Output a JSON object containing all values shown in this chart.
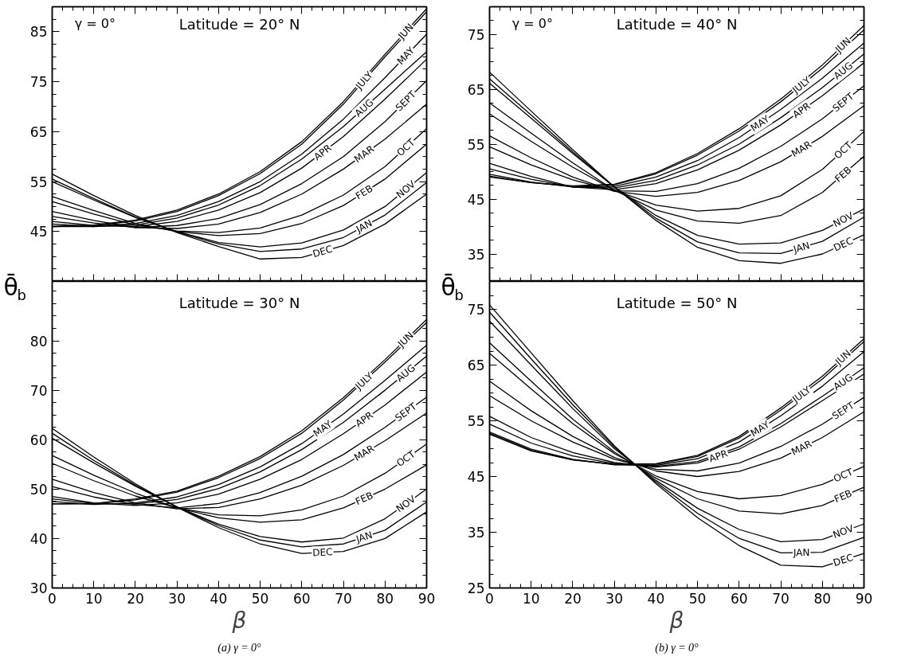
{
  "chart_data": [
    {
      "type": "line",
      "title": "Latitude = 20° N",
      "legend": "right",
      "ylabel": "θ̄$_{b}$",
      "annotations": [
        "γ = 0°"
      ],
      "x": [
        0,
        10,
        20,
        30,
        40,
        50,
        60,
        70,
        80,
        90
      ],
      "xlim": [
        0,
        90
      ],
      "xticks": [
        0,
        10,
        20,
        30,
        40,
        50,
        60,
        70,
        80,
        90
      ],
      "ylim": [
        35,
        90
      ],
      "yticks": [
        45,
        55,
        65,
        75,
        85
      ],
      "tick_labels": "y",
      "series": [
        {
          "name": "JAN",
          "color": "#000000",
          "values": [
            55.5,
            51.6,
            47.9,
            44.9,
            42.5,
            41,
            41.5,
            43.8,
            48.3,
            54.8
          ]
        },
        {
          "name": "FEB",
          "color": "#000000",
          "values": [
            52,
            49.2,
            46.6,
            45,
            44.2,
            44.6,
            46.6,
            50.2,
            55.5,
            62.5
          ]
        },
        {
          "name": "MAR",
          "color": "#000000",
          "values": [
            49,
            47.2,
            45.8,
            45.6,
            46.5,
            48.8,
            52.5,
            57.5,
            63.5,
            70.5
          ]
        },
        {
          "name": "APR",
          "color": "#000000",
          "values": [
            47,
            46.2,
            46,
            47,
            49.3,
            52.8,
            57.7,
            64,
            71.5,
            79.5
          ]
        },
        {
          "name": "MAY",
          "color": "#000000",
          "values": [
            46,
            46,
            46.6,
            48.2,
            51,
            55,
            60.5,
            67.5,
            75.8,
            84.5
          ]
        },
        {
          "name": "JUN",
          "color": "#000000",
          "values": [
            46,
            46.3,
            47.3,
            49.3,
            52.5,
            57,
            63,
            71,
            80.5,
            89.6
          ]
        },
        {
          "name": "JULY",
          "color": "#000000",
          "values": [
            46,
            46.2,
            47.1,
            49,
            52.2,
            56.6,
            62.5,
            70.5,
            80,
            89
          ]
        },
        {
          "name": "AUG",
          "color": "#000000",
          "values": [
            46.5,
            46,
            46.3,
            47.7,
            50.3,
            54.2,
            59.5,
            66,
            73.5,
            81
          ]
        },
        {
          "name": "SEPT",
          "color": "#000000",
          "values": [
            48,
            46.7,
            45.8,
            46.2,
            47.6,
            50.4,
            54.6,
            60,
            67,
            75.2
          ]
        },
        {
          "name": "OCT",
          "color": "#000000",
          "values": [
            51,
            48.5,
            46.3,
            45.1,
            44.8,
            45.7,
            48.3,
            52.3,
            58,
            65.6
          ]
        },
        {
          "name": "NOV",
          "color": "#000000",
          "values": [
            55,
            51.3,
            47.8,
            45,
            42.8,
            41.9,
            42.7,
            45.3,
            50,
            56.8
          ]
        },
        {
          "name": "DEC",
          "color": "#000000",
          "values": [
            56.5,
            52.2,
            48.2,
            44.8,
            42,
            39.5,
            39.8,
            42.2,
            46.5,
            52.5
          ]
        }
      ]
    },
    {
      "type": "line",
      "title": "Latitude = 30° N",
      "legend": "right",
      "xlabel": "β",
      "annotations": [
        "(a) γ = 0°"
      ],
      "x": [
        0,
        10,
        20,
        30,
        40,
        50,
        60,
        70,
        80,
        90
      ],
      "xlim": [
        0,
        90
      ],
      "xticks": [
        0,
        10,
        20,
        30,
        40,
        50,
        60,
        70,
        80,
        90
      ],
      "ylim": [
        30,
        92
      ],
      "yticks": [
        30,
        40,
        50,
        60,
        70,
        80
      ],
      "series": [
        {
          "name": "JAN",
          "color": "#000000",
          "values": [
            61.3,
            55.8,
            50.8,
            46.4,
            42.6,
            39.7,
            38.3,
            38.9,
            41.7,
            47.4
          ]
        },
        {
          "name": "FEB",
          "color": "#000000",
          "values": [
            56.8,
            52.8,
            49.2,
            46.2,
            44.2,
            43.3,
            43.8,
            46.2,
            50,
            54.9
          ]
        },
        {
          "name": "MAR",
          "color": "#000000",
          "values": [
            52,
            49.3,
            47.2,
            46,
            46.3,
            48,
            50.8,
            54.8,
            59.8,
            65.4
          ]
        },
        {
          "name": "APR",
          "color": "#000000",
          "values": [
            48.5,
            47.2,
            46.7,
            47.2,
            49,
            52,
            56,
            61.2,
            67,
            73.7
          ]
        },
        {
          "name": "MAY",
          "color": "#000000",
          "values": [
            47.5,
            46.9,
            47.2,
            48.4,
            50.9,
            54.5,
            59.2,
            65.2,
            72,
            79.1
          ]
        },
        {
          "name": "JUN",
          "color": "#000000",
          "values": [
            47,
            47.1,
            48,
            49.6,
            52.6,
            56.6,
            61.8,
            68.5,
            76.2,
            84.3
          ]
        },
        {
          "name": "JULY",
          "color": "#000000",
          "values": [
            47,
            47,
            47.8,
            49.4,
            52.3,
            56.2,
            61.3,
            68,
            75.7,
            83.7
          ]
        },
        {
          "name": "AUG",
          "color": "#000000",
          "values": [
            48,
            47.1,
            47,
            47.9,
            50.1,
            53.5,
            58,
            63.5,
            70,
            76.9
          ]
        },
        {
          "name": "SEPT",
          "color": "#000000",
          "values": [
            50.5,
            48.4,
            46.9,
            46.2,
            47.1,
            49.3,
            52.6,
            57,
            62.5,
            68.6
          ]
        },
        {
          "name": "OCT",
          "color": "#000000",
          "values": [
            55.2,
            51.7,
            48.6,
            46.2,
            44.8,
            44.6,
            45.8,
            48.6,
            53.2,
            59.1
          ]
        },
        {
          "name": "NOV",
          "color": "#000000",
          "values": [
            60.3,
            55.3,
            50.6,
            46.4,
            42.9,
            40.4,
            39.3,
            40.1,
            44,
            50
          ]
        },
        {
          "name": "DEC",
          "color": "#000000",
          "values": [
            62.3,
            56.5,
            51.1,
            46.3,
            42.2,
            38.9,
            37,
            37.4,
            40,
            45.4
          ]
        }
      ]
    },
    {
      "type": "line",
      "title": "Latitude = 40° N",
      "legend": "right",
      "ylabel": "θ̄$_{b}$",
      "annotations": [
        "γ = 0°"
      ],
      "x": [
        0,
        10,
        20,
        30,
        40,
        50,
        60,
        70,
        80,
        90
      ],
      "xlim": [
        0,
        90
      ],
      "xticks": [
        0,
        10,
        20,
        30,
        40,
        50,
        60,
        70,
        80,
        90
      ],
      "ylim": [
        30,
        80
      ],
      "yticks": [
        35,
        45,
        55,
        65,
        75
      ],
      "tick_labels": "y",
      "series": [
        {
          "name": "JAN",
          "color": "#000000",
          "values": [
            66.9,
            60.3,
            53.6,
            47.2,
            41.5,
            37.2,
            35.2,
            35.1,
            37.3,
            41.7
          ]
        },
        {
          "name": "FEB",
          "color": "#000000",
          "values": [
            62.5,
            57,
            51.6,
            46.6,
            43,
            41,
            40.6,
            42,
            46.2,
            52.8
          ]
        },
        {
          "name": "MAR",
          "color": "#000000",
          "values": [
            56.5,
            52.5,
            49,
            46.4,
            45.5,
            46.2,
            48.4,
            51.8,
            56.4,
            62
          ]
        },
        {
          "name": "APR",
          "color": "#000000",
          "values": [
            51.5,
            49.1,
            47.2,
            46.7,
            47.8,
            50.3,
            53.9,
            58.5,
            63.8,
            69.8
          ]
        },
        {
          "name": "MAY",
          "color": "#000000",
          "values": [
            49.5,
            48.1,
            47.2,
            47.3,
            49,
            52,
            56.2,
            61.3,
            67,
            73.4
          ]
        },
        {
          "name": "JUN",
          "color": "#000000",
          "values": [
            49,
            48,
            47.4,
            47.7,
            49.8,
            53.3,
            57.8,
            63.2,
            69.4,
            76.6
          ]
        },
        {
          "name": "JULY",
          "color": "#000000",
          "values": [
            49.2,
            48,
            47.3,
            47.6,
            49.6,
            53,
            57.4,
            62.7,
            68.8,
            75.8
          ]
        },
        {
          "name": "AUG",
          "color": "#000000",
          "values": [
            50.5,
            48.6,
            47.2,
            47,
            48.4,
            51.2,
            55,
            59.8,
            65.3,
            71.4
          ]
        },
        {
          "name": "SEPT",
          "color": "#000000",
          "values": [
            54.5,
            51.2,
            48.5,
            46.5,
            46.4,
            47.8,
            50.6,
            54.6,
            59.6,
            65.6
          ]
        },
        {
          "name": "OCT",
          "color": "#000000",
          "values": [
            60.5,
            55.5,
            50.8,
            46.6,
            43.9,
            42.8,
            43.3,
            45.6,
            50.4,
            57.3
          ]
        },
        {
          "name": "NOV",
          "color": "#000000",
          "values": [
            66.1,
            59.7,
            53.3,
            47.2,
            42,
            38.4,
            36.8,
            37,
            39.3,
            43.2
          ]
        },
        {
          "name": "DEC",
          "color": "#000000",
          "values": [
            68.1,
            61,
            54,
            47.2,
            41.1,
            36.2,
            33.8,
            33.3,
            35,
            38.5
          ]
        }
      ]
    },
    {
      "type": "line",
      "title": "Latitude = 50° N",
      "legend": "right",
      "xlabel": "β",
      "annotations": [
        "(b) γ = 0°"
      ],
      "x": [
        0,
        10,
        20,
        30,
        40,
        50,
        60,
        70,
        80,
        90
      ],
      "xlim": [
        0,
        90
      ],
      "xticks": [
        0,
        10,
        20,
        30,
        40,
        50,
        60,
        70,
        80,
        90
      ],
      "ylim": [
        25,
        80
      ],
      "yticks": [
        25,
        35,
        45,
        55,
        65,
        75
      ],
      "series": [
        {
          "name": "JAN",
          "color": "#000000",
          "values": [
            74.5,
            66.1,
            57.9,
            50.3,
            44,
            38.4,
            33.9,
            31.3,
            31.4,
            34.1
          ]
        },
        {
          "name": "FEB",
          "color": "#000000",
          "values": [
            69,
            62.1,
            55.3,
            49.4,
            44.7,
            41,
            38.8,
            38.3,
            39.8,
            43.1
          ]
        },
        {
          "name": "MAR",
          "color": "#000000",
          "values": [
            62.1,
            56.8,
            52.2,
            48.4,
            46,
            45,
            45.9,
            48.3,
            52,
            56.6
          ]
        },
        {
          "name": "APR",
          "color": "#000000",
          "values": [
            55.8,
            52,
            49.3,
            47.5,
            46.7,
            47.4,
            49.9,
            53.9,
            58.6,
            63.4
          ]
        },
        {
          "name": "MAY",
          "color": "#000000",
          "values": [
            53,
            49.9,
            48.1,
            47.1,
            47,
            48.2,
            51.2,
            55.9,
            61.2,
            67.4
          ]
        },
        {
          "name": "JUN",
          "color": "#000000",
          "values": [
            52.6,
            49.6,
            48,
            47.2,
            47.3,
            48.8,
            52.2,
            57.3,
            63,
            69.7
          ]
        },
        {
          "name": "JULY",
          "color": "#000000",
          "values": [
            52.8,
            49.7,
            48,
            47.2,
            47.2,
            48.6,
            51.9,
            56.9,
            62.5,
            69.2
          ]
        },
        {
          "name": "AUG",
          "color": "#000000",
          "values": [
            54.4,
            51,
            48.7,
            47.3,
            46.8,
            47.7,
            50.3,
            54.5,
            59.4,
            64.5
          ]
        },
        {
          "name": "SEPT",
          "color": "#000000",
          "values": [
            59.5,
            55,
            51.2,
            48.1,
            46.3,
            46,
            47.4,
            50.4,
            54.4,
            59.2
          ]
        },
        {
          "name": "OCT",
          "color": "#000000",
          "values": [
            67.1,
            60.7,
            54.5,
            49.1,
            45.1,
            42.3,
            41,
            41.6,
            43.6,
            46.8
          ]
        },
        {
          "name": "NOV",
          "color": "#000000",
          "values": [
            72.9,
            65,
            57.2,
            50,
            44.3,
            39.3,
            35.5,
            33.3,
            33.7,
            36.5
          ]
        },
        {
          "name": "DEC",
          "color": "#000000",
          "values": [
            75.8,
            67.2,
            58.6,
            50.5,
            43.7,
            37.6,
            32.6,
            29.1,
            28.8,
            31.2
          ]
        }
      ]
    }
  ]
}
